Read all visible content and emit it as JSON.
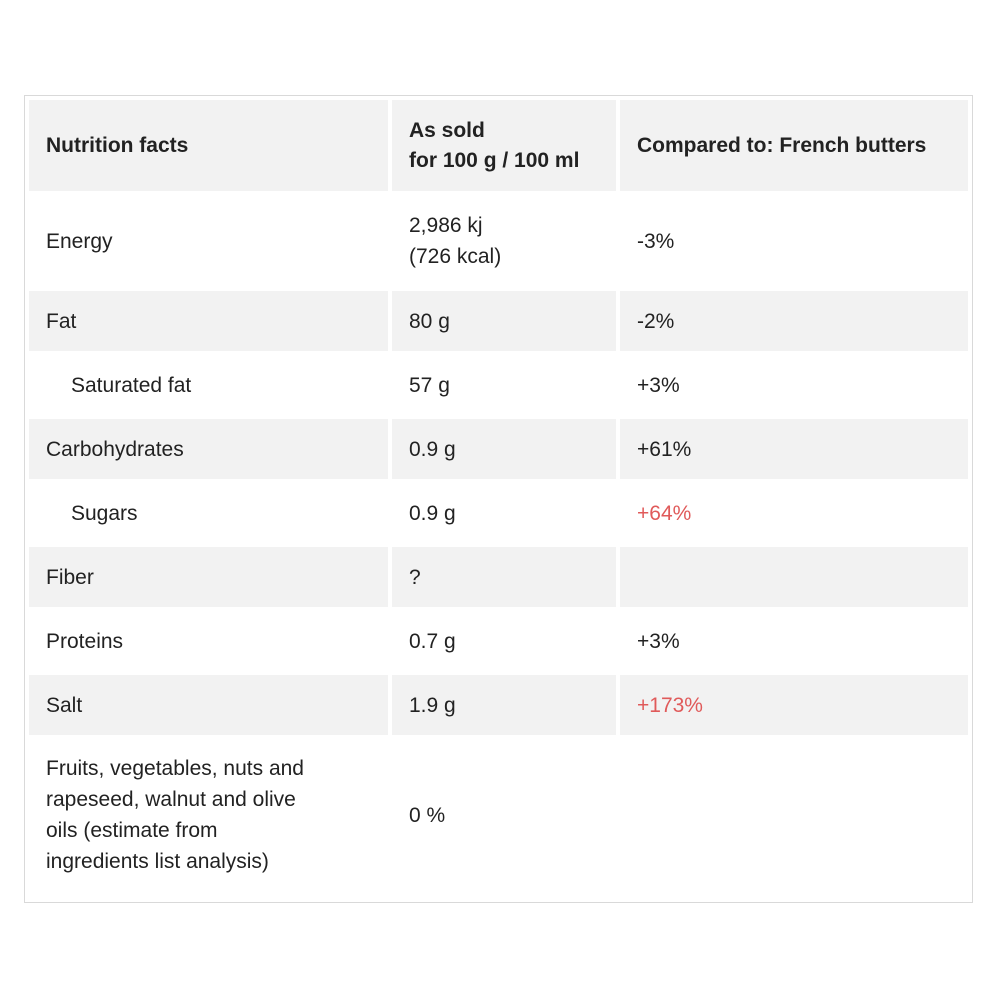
{
  "table": {
    "headers": {
      "col1": "Nutrition facts",
      "col2_line1": "As sold",
      "col2_line2": "for 100 g / 100 ml",
      "col3": "Compared to: French butters"
    },
    "rows": [
      {
        "name": "Energy",
        "value_line1": "2,986 kj",
        "value_line2": "(726 kcal)",
        "compare": "-3%"
      },
      {
        "name": "Fat",
        "value": "80 g",
        "compare": "-2%"
      },
      {
        "name": "Saturated fat",
        "value": "57 g",
        "compare": "+3%"
      },
      {
        "name": "Carbohydrates",
        "value": "0.9 g",
        "compare": "+61%"
      },
      {
        "name": "Sugars",
        "value": "0.9 g",
        "compare": "+64%"
      },
      {
        "name": "Fiber",
        "value": "?",
        "compare": ""
      },
      {
        "name": "Proteins",
        "value": "0.7 g",
        "compare": "+3%"
      },
      {
        "name": "Salt",
        "value": "1.9 g",
        "compare": "+173%"
      },
      {
        "name_lines": [
          "Fruits, vegetables, nuts and",
          "rapeseed, walnut and olive",
          "oils (estimate from",
          "ingredients list analysis)"
        ],
        "value": "0 %",
        "compare": ""
      }
    ]
  },
  "colors": {
    "header_bg": "#f2f2f2",
    "row_shade": "#f2f2f2",
    "warning_text": "#e05a5a",
    "border": "#d9d9d9"
  }
}
